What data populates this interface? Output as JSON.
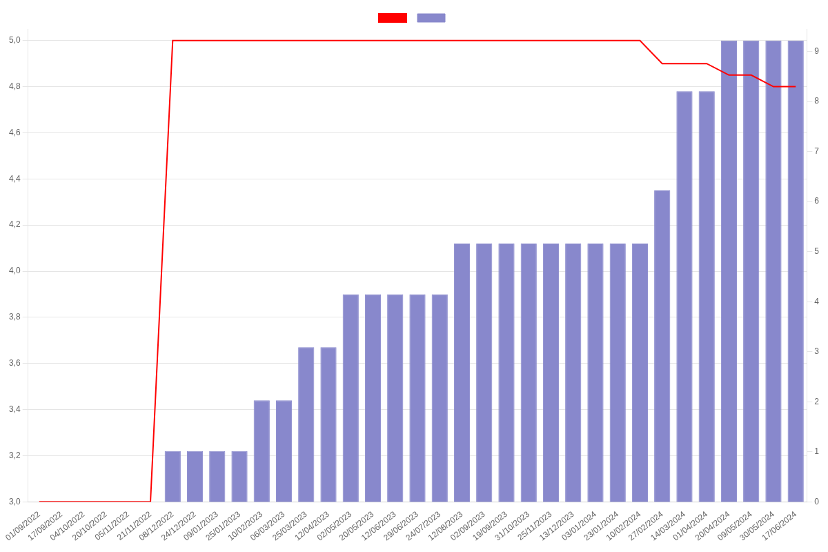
{
  "chart_data": {
    "type": "bar",
    "categories": [
      "01/09/2022",
      "17/09/2022",
      "04/10/2022",
      "20/10/2022",
      "05/11/2022",
      "21/11/2022",
      "08/12/2022",
      "24/12/2022",
      "09/01/2023",
      "25/01/2023",
      "10/02/2023",
      "06/03/2023",
      "25/03/2023",
      "12/04/2023",
      "02/05/2023",
      "20/05/2023",
      "12/06/2023",
      "29/06/2023",
      "24/07/2023",
      "12/08/2023",
      "02/09/2023",
      "19/09/2023",
      "31/10/2023",
      "25/11/2023",
      "13/12/2023",
      "03/01/2024",
      "23/01/2024",
      "10/02/2024",
      "27/02/2024",
      "14/03/2024",
      "01/04/2024",
      "20/04/2024",
      "09/05/2024",
      "30/05/2024",
      "17/06/2024"
    ],
    "series": [
      {
        "type": "line",
        "color": "#ff0000",
        "values": [
          3.0,
          3.0,
          3.0,
          3.0,
          3.0,
          3.0,
          5.0,
          5.0,
          5.0,
          5.0,
          5.0,
          5.0,
          5.0,
          5.0,
          5.0,
          5.0,
          5.0,
          5.0,
          5.0,
          5.0,
          5.0,
          5.0,
          5.0,
          5.0,
          5.0,
          5.0,
          5.0,
          5.0,
          4.9,
          4.9,
          4.9,
          4.85,
          4.85,
          4.8,
          4.8
        ]
      },
      {
        "type": "bar",
        "color": "#8888cc",
        "values": [
          null,
          null,
          null,
          null,
          null,
          null,
          3.22,
          3.22,
          3.22,
          3.22,
          3.44,
          3.44,
          3.67,
          3.67,
          3.9,
          3.9,
          3.9,
          3.9,
          3.9,
          4.12,
          4.12,
          4.12,
          4.12,
          4.12,
          4.12,
          4.12,
          4.12,
          4.12,
          4.35,
          4.78,
          4.78,
          5.0,
          5.0,
          5.0,
          5.0
        ]
      }
    ],
    "ylim": [
      3.0,
      5.05
    ],
    "yticks": [
      {
        "value": 3.0,
        "label": "3,0"
      },
      {
        "value": 3.2,
        "label": "3,2"
      },
      {
        "value": 3.4,
        "label": "3,4"
      },
      {
        "value": 3.6,
        "label": "3,6"
      },
      {
        "value": 3.8,
        "label": "3,8"
      },
      {
        "value": 4.0,
        "label": "4,0"
      },
      {
        "value": 4.2,
        "label": "4,2"
      },
      {
        "value": 4.4,
        "label": "4,4"
      },
      {
        "value": 4.6,
        "label": "4,6"
      },
      {
        "value": 4.8,
        "label": "4,8"
      },
      {
        "value": 5.0,
        "label": "5,0"
      }
    ],
    "y2lim": [
      0,
      9.45
    ],
    "y2ticks": [
      0,
      1,
      2,
      3,
      4,
      5,
      6,
      7,
      8,
      9
    ],
    "grid": true,
    "legend": "top"
  }
}
